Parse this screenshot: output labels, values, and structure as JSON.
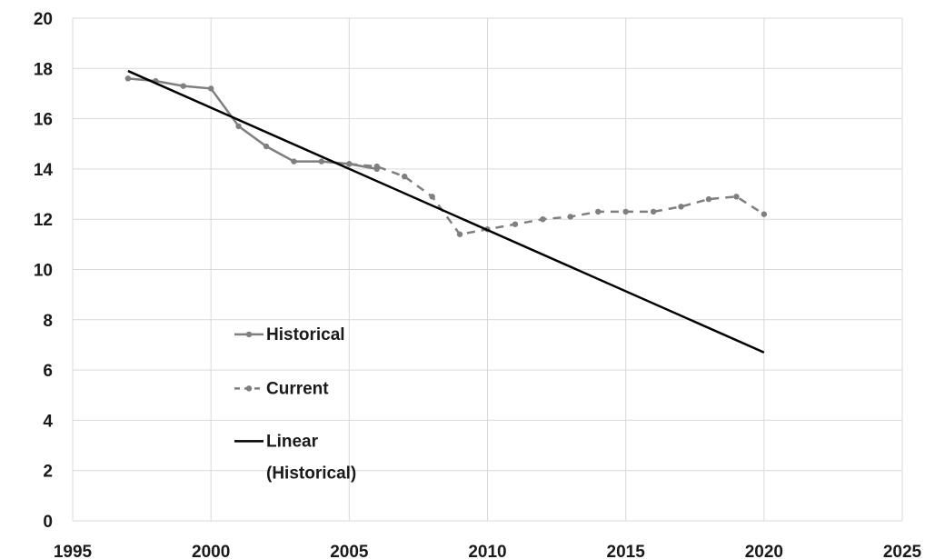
{
  "chart_data": {
    "type": "line",
    "title": "",
    "xlabel": "",
    "ylabel": "",
    "xlim": [
      1995,
      2025
    ],
    "ylim": [
      0,
      20
    ],
    "x_ticks": [
      1995,
      2000,
      2005,
      2010,
      2015,
      2020,
      2025
    ],
    "y_ticks": [
      0,
      2,
      4,
      6,
      8,
      10,
      12,
      14,
      16,
      18,
      20
    ],
    "grid": true,
    "legend_position": "center-left",
    "series": [
      {
        "name": "Historical",
        "style": "solid-markers",
        "color": "#7f7f7f",
        "x": [
          1997,
          1998,
          1999,
          2000,
          2001,
          2002,
          2003,
          2004,
          2005,
          2006
        ],
        "y": [
          17.6,
          17.5,
          17.3,
          17.2,
          15.7,
          14.9,
          14.3,
          14.3,
          14.2,
          14.0
        ]
      },
      {
        "name": "Current",
        "style": "dashed-markers",
        "color": "#7f7f7f",
        "x": [
          2005,
          2006,
          2007,
          2008,
          2009,
          2010,
          2011,
          2012,
          2013,
          2014,
          2015,
          2016,
          2017,
          2018,
          2019,
          2020
        ],
        "y": [
          14.2,
          14.1,
          13.7,
          12.9,
          11.4,
          11.6,
          11.8,
          12.0,
          12.1,
          12.3,
          12.3,
          12.3,
          12.5,
          12.8,
          12.9,
          12.2
        ]
      },
      {
        "name": "Linear (Historical)",
        "legend_lines": [
          "Linear",
          "(Historical)"
        ],
        "style": "solid-thick",
        "color": "#000000",
        "x": [
          1997,
          2020
        ],
        "y": [
          17.9,
          6.7
        ]
      }
    ]
  }
}
